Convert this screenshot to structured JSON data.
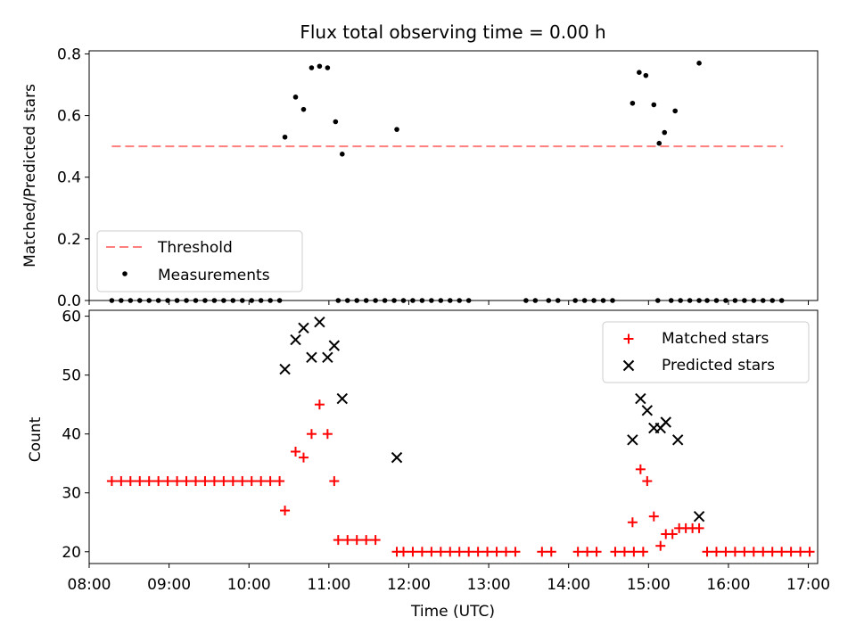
{
  "title": "Flux total observing time = 0.00 h",
  "xlabel": "Time (UTC)",
  "x_ticks": [
    "08:00",
    "09:00",
    "10:00",
    "11:00",
    "12:00",
    "13:00",
    "14:00",
    "15:00",
    "16:00",
    "17:00"
  ],
  "colors": {
    "threshold": "#ff7f7f",
    "measurements": "#000000",
    "matched": "#ff0000",
    "predicted": "#000000"
  },
  "chart_data": [
    {
      "type": "scatter",
      "ylabel": "Matched/Predicted stars",
      "xlim": [
        "08:00",
        "17:07"
      ],
      "ylim": [
        0,
        0.81
      ],
      "y_ticks": [
        "0.0",
        "0.2",
        "0.4",
        "0.6",
        "0.8"
      ],
      "y_tick_values": [
        0,
        0.2,
        0.4,
        0.6,
        0.8
      ],
      "legend": {
        "placement": "lower-left",
        "entries": [
          "Threshold",
          "Measurements"
        ]
      },
      "threshold": {
        "name": "Threshold",
        "value": 0.5,
        "x_range": [
          "08:17",
          "16:41"
        ]
      },
      "measurements": {
        "name": "Measurements",
        "points": [
          [
            "08:17",
            0
          ],
          [
            "08:24",
            0
          ],
          [
            "08:31",
            0
          ],
          [
            "08:38",
            0
          ],
          [
            "08:45",
            0
          ],
          [
            "08:52",
            0
          ],
          [
            "08:59",
            0
          ],
          [
            "09:06",
            0
          ],
          [
            "09:13",
            0
          ],
          [
            "09:20",
            0
          ],
          [
            "09:27",
            0
          ],
          [
            "09:34",
            0
          ],
          [
            "09:41",
            0
          ],
          [
            "09:48",
            0
          ],
          [
            "09:55",
            0
          ],
          [
            "10:02",
            0
          ],
          [
            "10:09",
            0
          ],
          [
            "10:16",
            0
          ],
          [
            "10:23",
            0
          ],
          [
            "10:27",
            0.53
          ],
          [
            "10:35",
            0.66
          ],
          [
            "10:41",
            0.62
          ],
          [
            "10:47",
            0.755
          ],
          [
            "10:53",
            0.76
          ],
          [
            "10:59",
            0.755
          ],
          [
            "11:05",
            0.58
          ],
          [
            "11:10",
            0.475
          ],
          [
            "11:07",
            0
          ],
          [
            "11:14",
            0
          ],
          [
            "11:21",
            0
          ],
          [
            "11:28",
            0
          ],
          [
            "11:35",
            0
          ],
          [
            "11:42",
            0
          ],
          [
            "11:49",
            0
          ],
          [
            "11:56",
            0
          ],
          [
            "12:03",
            0
          ],
          [
            "12:10",
            0
          ],
          [
            "12:17",
            0
          ],
          [
            "12:24",
            0
          ],
          [
            "12:31",
            0
          ],
          [
            "12:38",
            0
          ],
          [
            "12:45",
            0
          ],
          [
            "11:51",
            0.555
          ],
          [
            "13:28",
            0
          ],
          [
            "13:35",
            0
          ],
          [
            "13:45",
            0
          ],
          [
            "13:52",
            0
          ],
          [
            "14:05",
            0
          ],
          [
            "14:12",
            0
          ],
          [
            "14:19",
            0
          ],
          [
            "14:26",
            0
          ],
          [
            "14:33",
            0
          ],
          [
            "14:48",
            0.64
          ],
          [
            "14:53",
            0.74
          ],
          [
            "14:58",
            0.73
          ],
          [
            "15:04",
            0.635
          ],
          [
            "15:08",
            0.51
          ],
          [
            "15:12",
            0.545
          ],
          [
            "15:20",
            0.615
          ],
          [
            "15:38",
            0.77
          ],
          [
            "15:07",
            0
          ],
          [
            "15:17",
            0
          ],
          [
            "15:24",
            0
          ],
          [
            "15:31",
            0
          ],
          [
            "15:38",
            0
          ],
          [
            "15:44",
            0
          ],
          [
            "15:51",
            0
          ],
          [
            "15:58",
            0
          ],
          [
            "16:05",
            0
          ],
          [
            "16:12",
            0
          ],
          [
            "16:19",
            0
          ],
          [
            "16:26",
            0
          ],
          [
            "16:33",
            0
          ],
          [
            "16:40",
            0
          ]
        ]
      }
    },
    {
      "type": "scatter",
      "ylabel": "Count",
      "xlim": [
        "08:00",
        "17:07"
      ],
      "ylim": [
        18,
        61
      ],
      "y_ticks": [
        "20",
        "30",
        "40",
        "50",
        "60"
      ],
      "y_tick_values": [
        20,
        30,
        40,
        50,
        60
      ],
      "legend": {
        "placement": "upper-right",
        "entries": [
          "Matched stars",
          "Predicted stars"
        ]
      },
      "series": [
        {
          "name": "Matched stars",
          "marker": "plus",
          "points": [
            [
              "08:17",
              32
            ],
            [
              "08:24",
              32
            ],
            [
              "08:31",
              32
            ],
            [
              "08:38",
              32
            ],
            [
              "08:45",
              32
            ],
            [
              "08:52",
              32
            ],
            [
              "08:59",
              32
            ],
            [
              "09:06",
              32
            ],
            [
              "09:13",
              32
            ],
            [
              "09:20",
              32
            ],
            [
              "09:27",
              32
            ],
            [
              "09:34",
              32
            ],
            [
              "09:41",
              32
            ],
            [
              "09:48",
              32
            ],
            [
              "09:55",
              32
            ],
            [
              "10:02",
              32
            ],
            [
              "10:09",
              32
            ],
            [
              "10:16",
              32
            ],
            [
              "10:23",
              32
            ],
            [
              "10:27",
              27
            ],
            [
              "10:35",
              37
            ],
            [
              "10:41",
              36
            ],
            [
              "10:47",
              40
            ],
            [
              "10:53",
              45
            ],
            [
              "10:59",
              40
            ],
            [
              "11:04",
              32
            ],
            [
              "11:07",
              22
            ],
            [
              "11:14",
              22
            ],
            [
              "11:21",
              22
            ],
            [
              "11:28",
              22
            ],
            [
              "11:35",
              22
            ],
            [
              "11:51",
              20
            ],
            [
              "11:56",
              20
            ],
            [
              "12:03",
              20
            ],
            [
              "12:10",
              20
            ],
            [
              "12:17",
              20
            ],
            [
              "12:24",
              20
            ],
            [
              "12:31",
              20
            ],
            [
              "12:38",
              20
            ],
            [
              "12:45",
              20
            ],
            [
              "12:52",
              20
            ],
            [
              "12:59",
              20
            ],
            [
              "13:06",
              20
            ],
            [
              "13:13",
              20
            ],
            [
              "13:20",
              20
            ],
            [
              "13:40",
              20
            ],
            [
              "13:47",
              20
            ],
            [
              "14:07",
              20
            ],
            [
              "14:14",
              20
            ],
            [
              "14:21",
              20
            ],
            [
              "14:35",
              20
            ],
            [
              "14:42",
              20
            ],
            [
              "14:49",
              20
            ],
            [
              "14:56",
              20
            ],
            [
              "14:48",
              25
            ],
            [
              "14:54",
              34
            ],
            [
              "14:59",
              32
            ],
            [
              "15:04",
              26
            ],
            [
              "15:09",
              21
            ],
            [
              "15:13",
              23
            ],
            [
              "15:18",
              23
            ],
            [
              "15:23",
              24
            ],
            [
              "15:28",
              24
            ],
            [
              "15:33",
              24
            ],
            [
              "15:38",
              24
            ],
            [
              "15:44",
              20
            ],
            [
              "15:51",
              20
            ],
            [
              "15:58",
              20
            ],
            [
              "16:05",
              20
            ],
            [
              "16:12",
              20
            ],
            [
              "16:19",
              20
            ],
            [
              "16:26",
              20
            ],
            [
              "16:33",
              20
            ],
            [
              "16:40",
              20
            ],
            [
              "16:47",
              20
            ],
            [
              "16:54",
              20
            ],
            [
              "17:01",
              20
            ]
          ]
        },
        {
          "name": "Predicted stars",
          "marker": "x",
          "points": [
            [
              "10:27",
              51
            ],
            [
              "10:35",
              56
            ],
            [
              "10:41",
              58
            ],
            [
              "10:47",
              53
            ],
            [
              "10:53",
              59
            ],
            [
              "10:59",
              53
            ],
            [
              "11:04",
              55
            ],
            [
              "11:10",
              46
            ],
            [
              "11:51",
              36
            ],
            [
              "14:48",
              39
            ],
            [
              "14:54",
              46
            ],
            [
              "14:59",
              44
            ],
            [
              "15:04",
              41
            ],
            [
              "15:09",
              41
            ],
            [
              "15:13",
              42
            ],
            [
              "15:22",
              39
            ],
            [
              "15:38",
              26
            ]
          ]
        }
      ]
    }
  ]
}
